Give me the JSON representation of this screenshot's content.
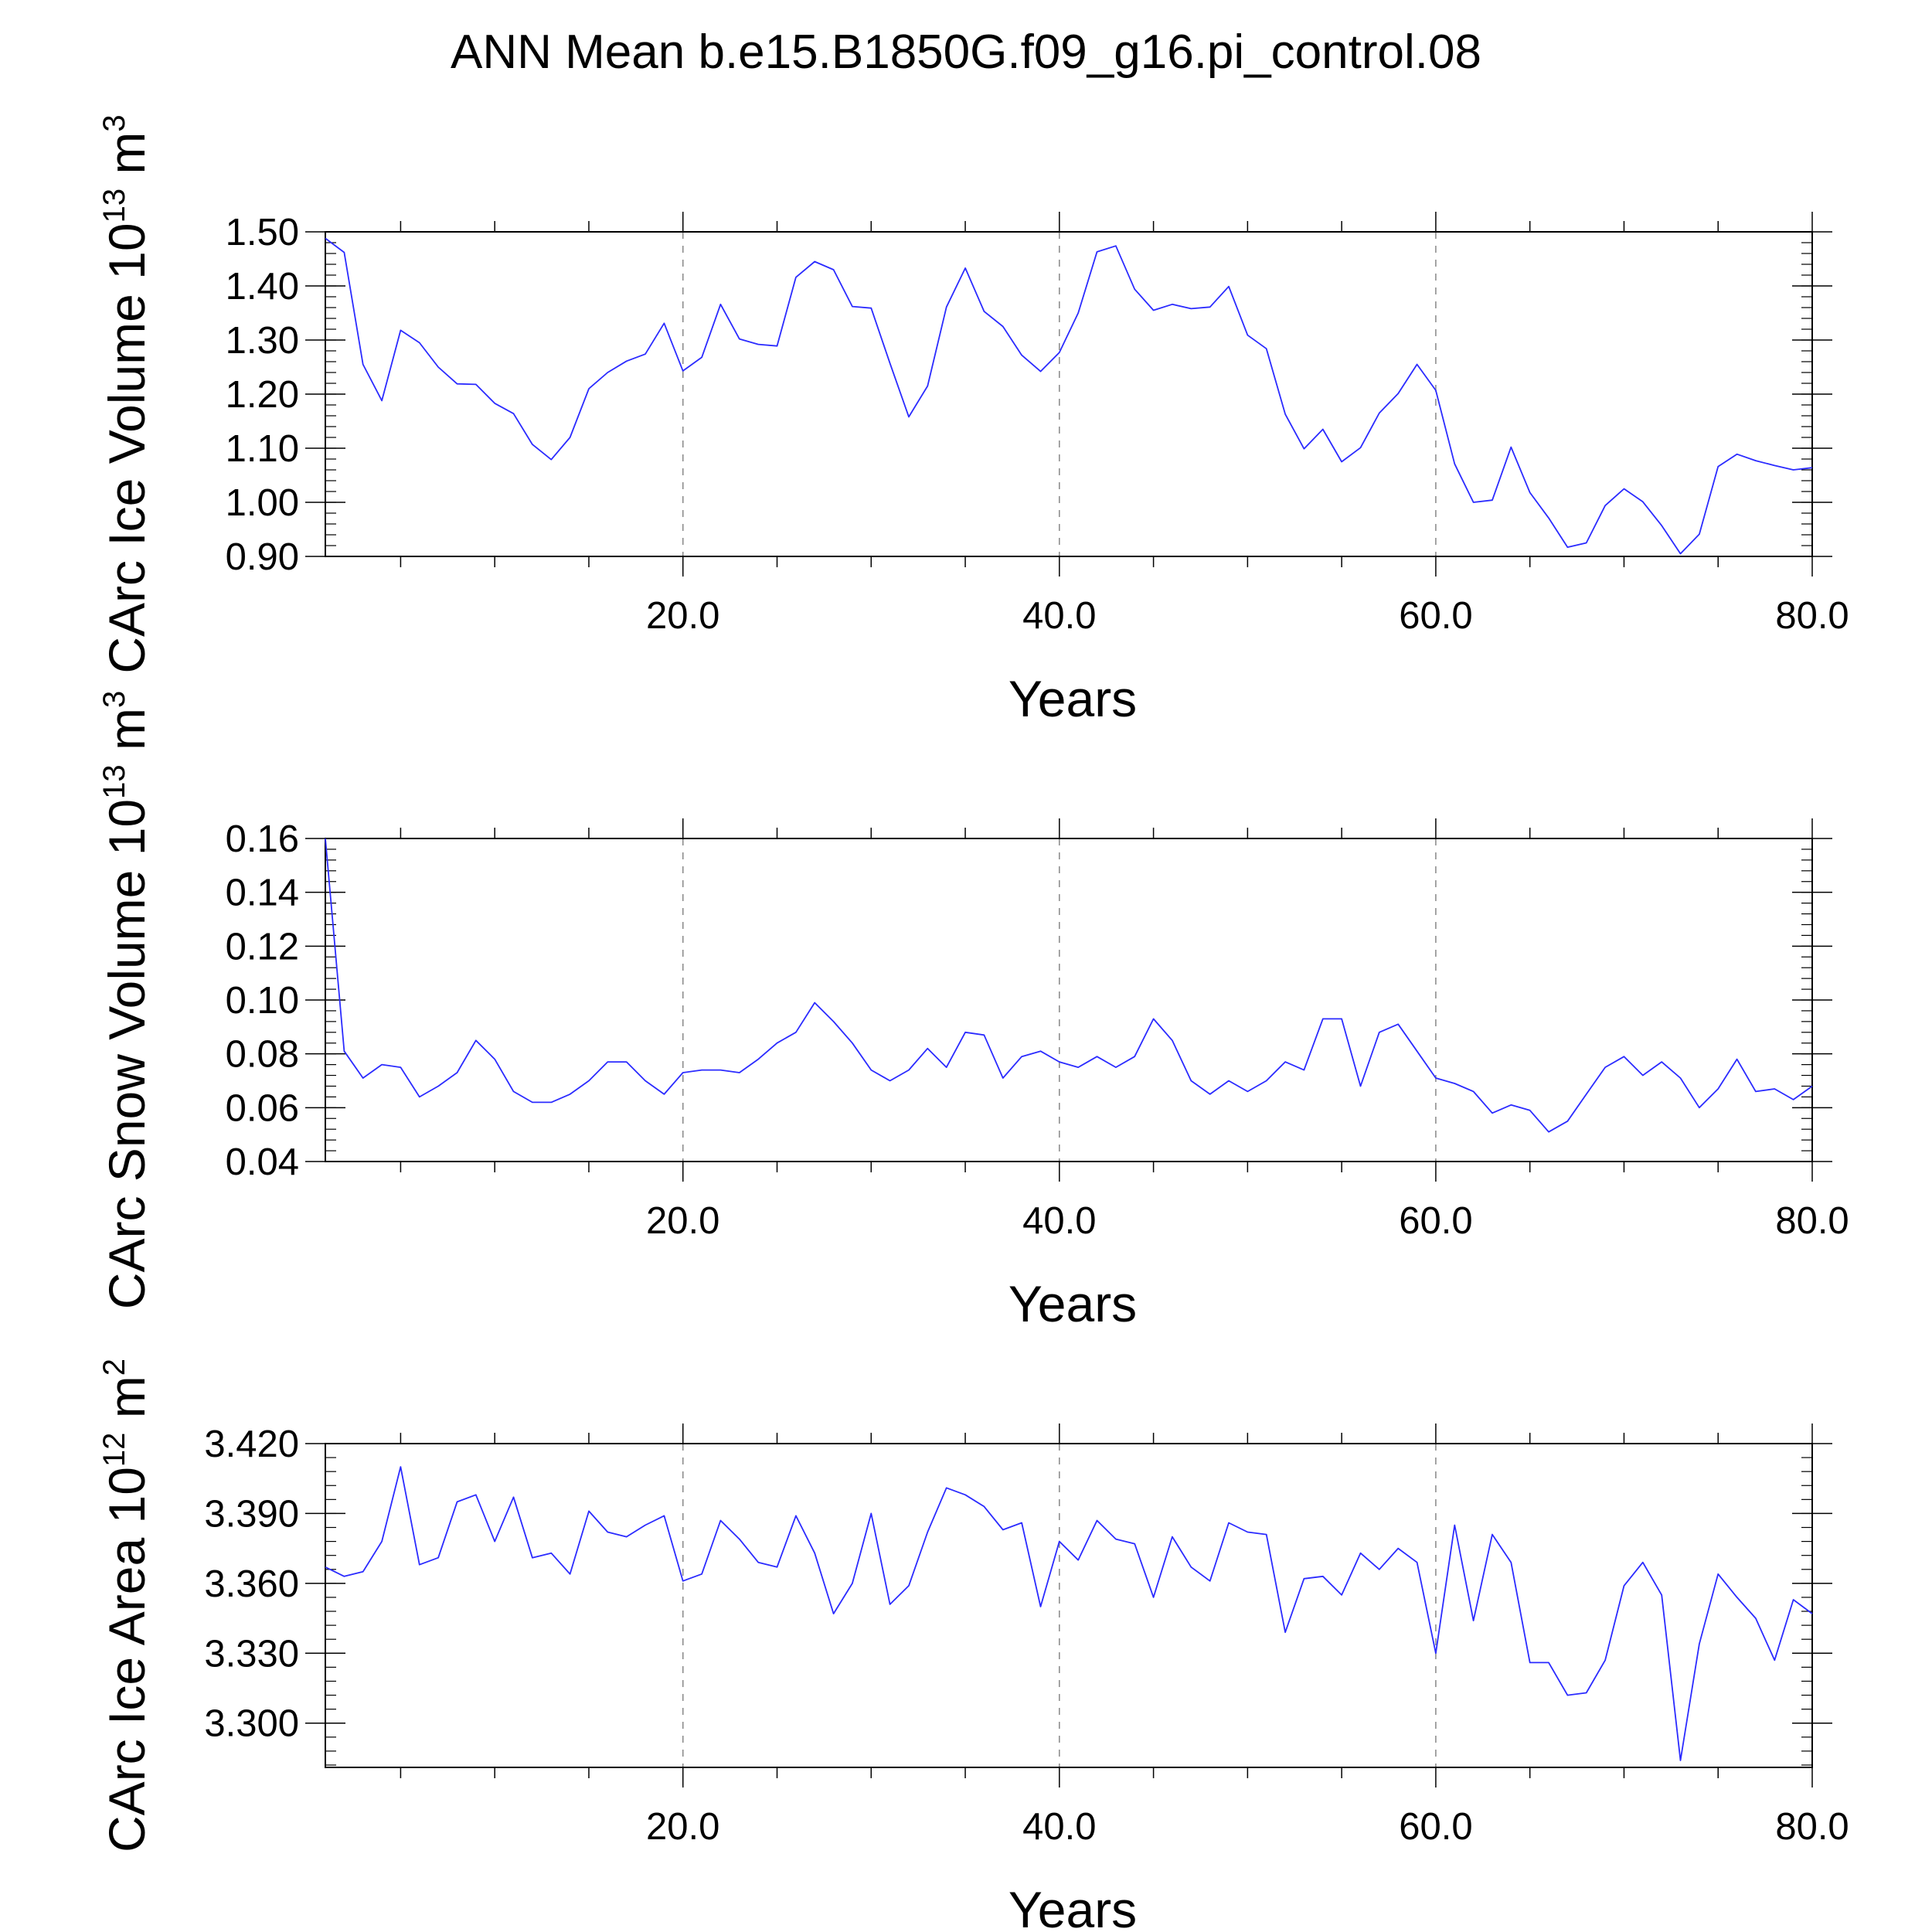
{
  "page_title": "ANN Mean b.e15.B1850G.f09_g16.pi_control.08",
  "colors": {
    "series": "#2b2bff",
    "axes": "#000000",
    "grid": "#888888"
  },
  "chart_data": [
    {
      "type": "line",
      "title": "ANN Mean b.e15.B1850G.f09_g16.pi_control.08",
      "xlabel": "Years",
      "ylabel_main": "CArc Ice Volume 10",
      "ylabel_exp": "13",
      "ylabel_unit": " m",
      "ylabel_unit_exp": "3",
      "xlim": [
        1,
        80
      ],
      "ylim": [
        0.9,
        1.5
      ],
      "xticks": [
        20,
        40,
        60,
        80
      ],
      "xtick_labels": [
        "20.0",
        "40.0",
        "60.0",
        "80.0"
      ],
      "yticks": [
        0.9,
        1.0,
        1.1,
        1.2,
        1.3,
        1.4,
        1.5
      ],
      "ytick_labels": [
        "0.90",
        "1.00",
        "1.10",
        "1.20",
        "1.30",
        "1.40",
        "1.50"
      ],
      "x": [
        1,
        2,
        3,
        4,
        5,
        6,
        7,
        8,
        9,
        10,
        11,
        12,
        13,
        14,
        15,
        16,
        17,
        18,
        19,
        20,
        21,
        22,
        23,
        24,
        25,
        26,
        27,
        28,
        29,
        30,
        31,
        32,
        33,
        34,
        35,
        36,
        37,
        38,
        39,
        40,
        41,
        42,
        43,
        44,
        45,
        46,
        47,
        48,
        49,
        50,
        51,
        52,
        53,
        54,
        55,
        56,
        57,
        58,
        59,
        60,
        61,
        62,
        63,
        64,
        65,
        66,
        67,
        68,
        69,
        70,
        71,
        72,
        73,
        74,
        75,
        76,
        77,
        78,
        79,
        80
      ],
      "values": [
        1.488,
        1.462,
        1.255,
        1.188,
        1.318,
        1.295,
        1.25,
        1.219,
        1.218,
        1.183,
        1.164,
        1.107,
        1.079,
        1.12,
        1.21,
        1.24,
        1.261,
        1.274,
        1.331,
        1.243,
        1.268,
        1.366,
        1.302,
        1.292,
        1.289,
        1.416,
        1.445,
        1.43,
        1.362,
        1.359,
        1.257,
        1.158,
        1.215,
        1.361,
        1.433,
        1.353,
        1.325,
        1.272,
        1.242,
        1.277,
        1.35,
        1.463,
        1.474,
        1.394,
        1.355,
        1.366,
        1.358,
        1.361,
        1.399,
        1.309,
        1.284,
        1.163,
        1.099,
        1.135,
        1.075,
        1.101,
        1.165,
        1.201,
        1.255,
        1.207,
        1.071,
        1.0,
        1.004,
        1.102,
        1.018,
        0.971,
        0.917,
        0.925,
        0.994,
        1.025,
        1.001,
        0.957,
        0.905,
        0.941,
        1.066,
        1.089,
        1.077,
        1.068,
        1.06,
        1.064
      ]
    },
    {
      "type": "line",
      "xlabel": "Years",
      "ylabel_main": "CArc Snow Volume 10",
      "ylabel_exp": "13",
      "ylabel_unit": " m",
      "ylabel_unit_exp": "3",
      "xlim": [
        1,
        80
      ],
      "ylim": [
        0.04,
        0.16
      ],
      "xticks": [
        20,
        40,
        60,
        80
      ],
      "xtick_labels": [
        "20.0",
        "40.0",
        "60.0",
        "80.0"
      ],
      "yticks": [
        0.04,
        0.06,
        0.08,
        0.1,
        0.12,
        0.14,
        0.16
      ],
      "ytick_labels": [
        "0.04",
        "0.06",
        "0.08",
        "0.10",
        "0.12",
        "0.14",
        "0.16"
      ],
      "x": [
        1,
        2,
        3,
        4,
        5,
        6,
        7,
        8,
        9,
        10,
        11,
        12,
        13,
        14,
        15,
        16,
        17,
        18,
        19,
        20,
        21,
        22,
        23,
        24,
        25,
        26,
        27,
        28,
        29,
        30,
        31,
        32,
        33,
        34,
        35,
        36,
        37,
        38,
        39,
        40,
        41,
        42,
        43,
        44,
        45,
        46,
        47,
        48,
        49,
        50,
        51,
        52,
        53,
        54,
        55,
        56,
        57,
        58,
        59,
        60,
        61,
        62,
        63,
        64,
        65,
        66,
        67,
        68,
        69,
        70,
        71,
        72,
        73,
        74,
        75,
        76,
        77,
        78,
        79,
        80
      ],
      "values": [
        0.16,
        0.081,
        0.071,
        0.076,
        0.075,
        0.064,
        0.068,
        0.073,
        0.085,
        0.078,
        0.066,
        0.062,
        0.062,
        0.065,
        0.07,
        0.077,
        0.077,
        0.07,
        0.065,
        0.073,
        0.074,
        0.074,
        0.073,
        0.078,
        0.084,
        0.088,
        0.099,
        0.092,
        0.084,
        0.074,
        0.07,
        0.074,
        0.082,
        0.075,
        0.088,
        0.087,
        0.071,
        0.079,
        0.081,
        0.077,
        0.075,
        0.079,
        0.075,
        0.079,
        0.093,
        0.085,
        0.07,
        0.065,
        0.07,
        0.066,
        0.07,
        0.077,
        0.074,
        0.093,
        0.093,
        0.068,
        0.088,
        0.091,
        0.081,
        0.071,
        0.069,
        0.066,
        0.058,
        0.061,
        0.059,
        0.051,
        0.055,
        0.065,
        0.075,
        0.079,
        0.072,
        0.077,
        0.071,
        0.06,
        0.067,
        0.078,
        0.066,
        0.067,
        0.063,
        0.068
      ]
    },
    {
      "type": "line",
      "xlabel": "Years",
      "ylabel_main": "CArc Ice Area 10",
      "ylabel_exp": "12",
      "ylabel_unit": " m",
      "ylabel_unit_exp": "2",
      "xlim": [
        1,
        80
      ],
      "ylim": [
        3.281,
        3.42
      ],
      "xticks": [
        20,
        40,
        60,
        80
      ],
      "xtick_labels": [
        "20.0",
        "40.0",
        "60.0",
        "80.0"
      ],
      "yticks": [
        3.3,
        3.33,
        3.36,
        3.39,
        3.42
      ],
      "ytick_labels": [
        "3.300",
        "3.330",
        "3.360",
        "3.390",
        "3.420"
      ],
      "x": [
        1,
        2,
        3,
        4,
        5,
        6,
        7,
        8,
        9,
        10,
        11,
        12,
        13,
        14,
        15,
        16,
        17,
        18,
        19,
        20,
        21,
        22,
        23,
        24,
        25,
        26,
        27,
        28,
        29,
        30,
        31,
        32,
        33,
        34,
        35,
        36,
        37,
        38,
        39,
        40,
        41,
        42,
        43,
        44,
        45,
        46,
        47,
        48,
        49,
        50,
        51,
        52,
        53,
        54,
        55,
        56,
        57,
        58,
        59,
        60,
        61,
        62,
        63,
        64,
        65,
        66,
        67,
        68,
        69,
        70,
        71,
        72,
        73,
        74,
        75,
        76,
        77,
        78,
        79,
        80
      ],
      "values": [
        3.367,
        3.363,
        3.365,
        3.378,
        3.41,
        3.368,
        3.371,
        3.395,
        3.398,
        3.378,
        3.397,
        3.371,
        3.373,
        3.364,
        3.391,
        3.382,
        3.38,
        3.385,
        3.389,
        3.361,
        3.364,
        3.387,
        3.379,
        3.369,
        3.367,
        3.389,
        3.373,
        3.347,
        3.36,
        3.39,
        3.351,
        3.359,
        3.382,
        3.401,
        3.398,
        3.393,
        3.383,
        3.386,
        3.35,
        3.378,
        3.37,
        3.387,
        3.379,
        3.377,
        3.354,
        3.38,
        3.367,
        3.361,
        3.386,
        3.382,
        3.381,
        3.339,
        3.362,
        3.363,
        3.355,
        3.373,
        3.366,
        3.375,
        3.369,
        3.33,
        3.385,
        3.344,
        3.381,
        3.369,
        3.326,
        3.326,
        3.312,
        3.313,
        3.327,
        3.359,
        3.369,
        3.355,
        3.284,
        3.334,
        3.364,
        3.354,
        3.345,
        3.327,
        3.353,
        3.347
      ]
    }
  ]
}
